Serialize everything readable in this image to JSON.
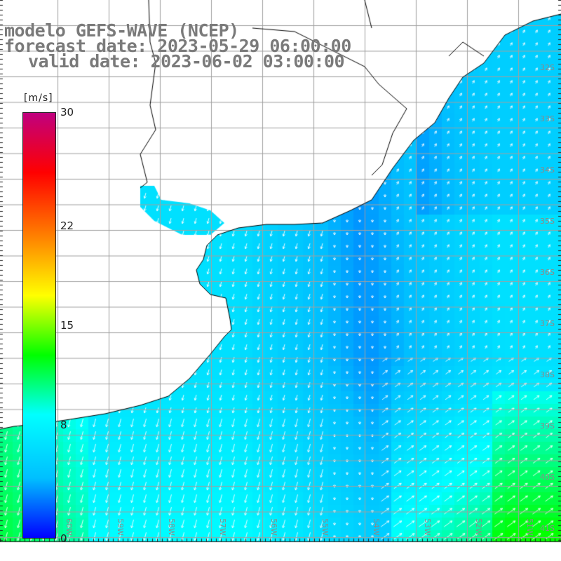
{
  "header": {
    "title_line1": "modelo GEFS-WAVE (NCEP)",
    "title_line2": "forecast date: 2023-05-29 06:00:00",
    "title_line3": "valid date: 2023-06-02 03:00:00"
  },
  "colorbar": {
    "units": "[m/s]",
    "min": 0,
    "max": 30,
    "ticks": [
      {
        "value": 30,
        "label": "30"
      },
      {
        "value": 22,
        "label": "22"
      },
      {
        "value": 15,
        "label": "15"
      },
      {
        "value": 8,
        "label": "8"
      },
      {
        "value": 0,
        "label": "0"
      }
    ],
    "colors": [
      "#0000ff",
      "#00bfff",
      "#00ffff",
      "#00ff00",
      "#ffff00",
      "#ff8000",
      "#ff0000",
      "#c0007f"
    ]
  },
  "map": {
    "lat_labels": [
      "32S",
      "33S",
      "34S",
      "35S",
      "36S",
      "37S",
      "38S",
      "39S",
      "40S",
      "41S"
    ],
    "lon_labels": [
      "60W",
      "59W",
      "58W",
      "57W",
      "56W",
      "55W",
      "54W",
      "53W",
      "52W",
      "51W"
    ],
    "land_color": "#ffffff",
    "grid_color": "#a0a0a0",
    "coast_color": "#000000"
  }
}
